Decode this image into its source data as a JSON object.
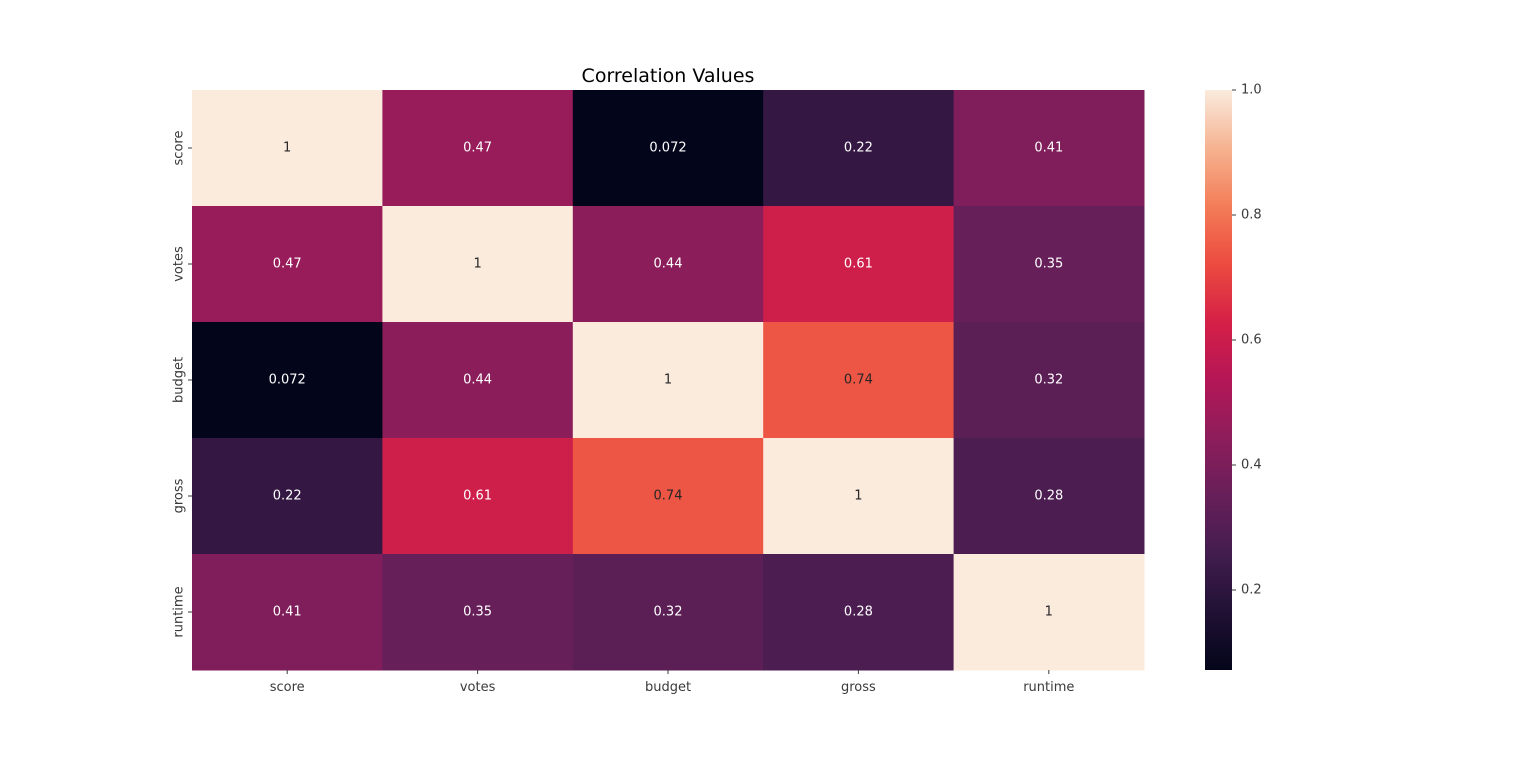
{
  "chart_data": {
    "type": "heatmap",
    "title": "Correlation Values",
    "xlabel": "",
    "ylabel": "",
    "x_categories": [
      "score",
      "votes",
      "budget",
      "gross",
      "runtime"
    ],
    "y_categories": [
      "score",
      "votes",
      "budget",
      "gross",
      "runtime"
    ],
    "values": [
      [
        1,
        0.47,
        0.072,
        0.22,
        0.41
      ],
      [
        0.47,
        1,
        0.44,
        0.61,
        0.35
      ],
      [
        0.072,
        0.44,
        1,
        0.74,
        0.32
      ],
      [
        0.22,
        0.61,
        0.74,
        1,
        0.28
      ],
      [
        0.41,
        0.35,
        0.32,
        0.28,
        1
      ]
    ],
    "annotations": [
      [
        "1",
        "0.47",
        "0.072",
        "0.22",
        "0.41"
      ],
      [
        "0.47",
        "1",
        "0.44",
        "0.61",
        "0.35"
      ],
      [
        "0.072",
        "0.44",
        "1",
        "0.74",
        "0.32"
      ],
      [
        "0.22",
        "0.61",
        "0.74",
        "1",
        "0.28"
      ],
      [
        "0.41",
        "0.35",
        "0.32",
        "0.28",
        "1"
      ]
    ],
    "colormap": "rocket",
    "color_range": [
      0.072,
      1.0
    ],
    "colorbar": {
      "ticks": [
        0.2,
        0.4,
        0.6,
        0.8,
        1.0
      ],
      "tick_labels": [
        "0.2",
        "0.4",
        "0.6",
        "0.8",
        "1.0"
      ],
      "placement": "right"
    },
    "grid": false,
    "legend": "none"
  }
}
